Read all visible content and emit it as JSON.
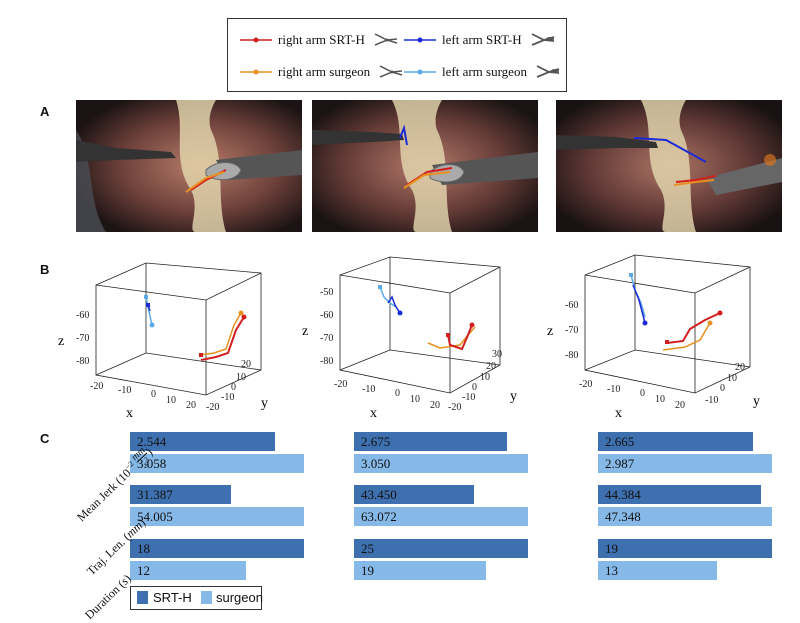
{
  "legend": {
    "items": [
      {
        "label": "right arm SRT-H",
        "color": "#d11f1f"
      },
      {
        "label": "left arm SRT-H",
        "color": "#1b2bd6"
      },
      {
        "label": "right arm surgeon",
        "color": "#e8901f"
      },
      {
        "label": "left arm surgeon",
        "color": "#5aaae6"
      }
    ]
  },
  "panels": {
    "a": "A",
    "b": "B",
    "c": "C"
  },
  "plots3d": [
    {
      "z_ticks": [
        "-60",
        "-70",
        "-80"
      ],
      "x_ticks": [
        "-20",
        "-10",
        "0",
        "10",
        "20"
      ],
      "y_ticks": [
        "20",
        "10",
        "0",
        "-10",
        "-20"
      ],
      "xlabel": "x",
      "ylabel": "y",
      "zlabel": "z"
    },
    {
      "z_ticks": [
        "-50",
        "-60",
        "-70",
        "-80"
      ],
      "x_ticks": [
        "-20",
        "-10",
        "0",
        "10",
        "20"
      ],
      "y_ticks": [
        "30",
        "20",
        "10",
        "0",
        "-10",
        "-20"
      ],
      "xlabel": "x",
      "ylabel": "y",
      "zlabel": "z"
    },
    {
      "z_ticks": [
        "-60",
        "-70",
        "-80"
      ],
      "x_ticks": [
        "-20",
        "-10",
        "0",
        "10",
        "20"
      ],
      "y_ticks": [
        "20",
        "10",
        "0",
        "-10"
      ],
      "xlabel": "x",
      "ylabel": "y",
      "zlabel": "z"
    }
  ],
  "chart_data": {
    "type": "bar",
    "categories": [
      "Mean Jerk (10⁻² mm/s³)",
      "Traj. Len. (mm)",
      "Duration (s)"
    ],
    "row_labels": [
      "Mean Jerk (10",
      "−2",
      "mm",
      "s",
      "3",
      ")",
      "Traj. Len. (",
      "mm",
      ")",
      "Duration (",
      "s",
      ")"
    ],
    "groups": [
      {
        "srth": [
          2.544,
          31.387,
          18
        ],
        "surgeon": [
          3.058,
          54.005,
          12
        ],
        "labels_srth": [
          "2.544",
          "31.387",
          "18"
        ],
        "labels_surgeon": [
          "3.058",
          "54.005",
          "12"
        ]
      },
      {
        "srth": [
          2.675,
          43.45,
          25
        ],
        "surgeon": [
          3.05,
          63.072,
          19
        ],
        "labels_srth": [
          "2.675",
          "43.450",
          "25"
        ],
        "labels_surgeon": [
          "3.050",
          "63.072",
          "19"
        ]
      },
      {
        "srth": [
          2.665,
          44.384,
          19
        ],
        "surgeon": [
          2.987,
          47.348,
          13
        ],
        "labels_srth": [
          "2.665",
          "44.384",
          "19"
        ],
        "labels_surgeon": [
          "2.987",
          "47.348",
          "13"
        ]
      }
    ],
    "series": [
      {
        "name": "SRT-H",
        "color": "#3e70b0"
      },
      {
        "name": "surgeon",
        "color": "#86b9e8"
      }
    ],
    "legend_position": "bottom-left"
  }
}
